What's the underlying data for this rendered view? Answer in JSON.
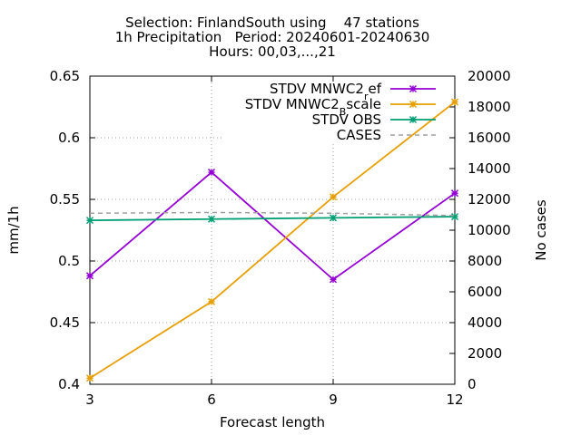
{
  "chart_data": {
    "type": "line",
    "title_lines": [
      "Selection: FinlandSouth using    47 stations",
      "1h Precipitation   Period: 20240601-20240630",
      "Hours: 00,03,...,21"
    ],
    "xlabel": "Forecast length",
    "ylabel": "mm/1h",
    "y2label": "No cases",
    "x": [
      3,
      6,
      9,
      12
    ],
    "xlim": [
      3,
      12
    ],
    "ylim": [
      0.4,
      0.65
    ],
    "y2lim": [
      0,
      20000
    ],
    "xticks": [
      "3",
      "6",
      "9",
      "12"
    ],
    "yticks": [
      "0.4",
      "0.45",
      "0.5",
      "0.55",
      "0.6",
      "0.65"
    ],
    "y2ticks": [
      "0",
      "2000",
      "4000",
      "6000",
      "8000",
      "10000",
      "12000",
      "14000",
      "16000",
      "18000",
      "20000"
    ],
    "grid": true,
    "legend_position": "top-right",
    "series": [
      {
        "name": "STDV MNWC2_ref",
        "label_main": "STDV MNWC2",
        "label_sub": "r",
        "label_tail": "ef",
        "axis": "y",
        "color": "#9400d3",
        "marker": "star",
        "dash": false,
        "values": [
          0.488,
          0.572,
          0.485,
          0.555
        ]
      },
      {
        "name": "STDV MNWC2_Bscale",
        "label_main": "STDV MNWC2",
        "label_sub": "B",
        "label_tail": "scale",
        "axis": "y",
        "color": "#e69f00",
        "marker": "star",
        "dash": false,
        "values": [
          0.405,
          0.467,
          0.552,
          0.629
        ]
      },
      {
        "name": "STDV OBS",
        "label_main": "STDV OBS",
        "label_sub": "",
        "label_tail": "",
        "axis": "y",
        "color": "#009e73",
        "marker": "star",
        "dash": false,
        "values": [
          0.533,
          0.534,
          0.535,
          0.536
        ]
      },
      {
        "name": "CASES",
        "label_main": "CASES",
        "label_sub": "",
        "label_tail": "",
        "axis": "y2",
        "color": "#a0a0a0",
        "marker": "none",
        "dash": true,
        "values": [
          11100,
          11150,
          11100,
          10950
        ]
      }
    ]
  }
}
